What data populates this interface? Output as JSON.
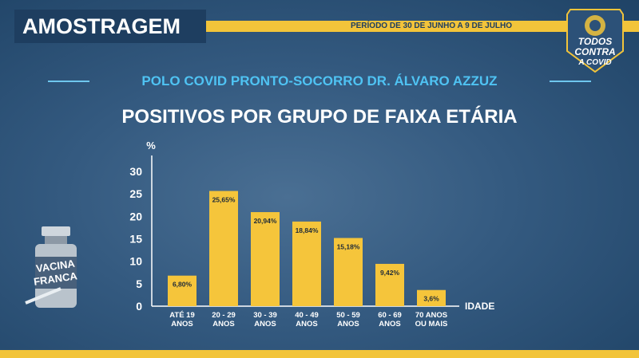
{
  "header": {
    "title": "AMOSTRAGEM",
    "period": "PERÍODO DE 30 DE JUNHO A 9 DE JULHO",
    "badge_lines": [
      "TODOS",
      "CONTRA",
      "A COVID"
    ]
  },
  "subtitle": "POLO COVID PRONTO-SOCORRO DR. ÁLVARO AZZUZ",
  "side_logo_text": [
    "VACINA",
    "FRANCA"
  ],
  "colors": {
    "bar": "#f5c53b",
    "accent_blue": "#4fc3f3",
    "title_box": "#1e3e60",
    "stripe": "#f2c43a"
  },
  "chart_data": {
    "type": "bar",
    "title": "POSITIVOS POR GRUPO DE FAIXA ETÁRIA",
    "ylabel": "%",
    "xlabel": "IDADE",
    "ylim": [
      0,
      30
    ],
    "yticks": [
      "0",
      "5",
      "10",
      "15",
      "20",
      "25",
      "30"
    ],
    "categories": [
      [
        "ATÉ 19",
        "ANOS"
      ],
      [
        "20 - 29",
        "ANOS"
      ],
      [
        "30 - 39",
        "ANOS"
      ],
      [
        "40 - 49",
        "ANOS"
      ],
      [
        "50 - 59",
        "ANOS"
      ],
      [
        "60 - 69",
        "ANOS"
      ],
      [
        "70 ANOS",
        "OU MAIS"
      ]
    ],
    "values": [
      6.8,
      25.65,
      20.94,
      18.84,
      15.18,
      9.42,
      3.6
    ],
    "value_labels": [
      "6,80%",
      "25,65%",
      "20,94%",
      "18,84%",
      "15,18%",
      "9,42%",
      "3,6%"
    ],
    "grid": false
  }
}
